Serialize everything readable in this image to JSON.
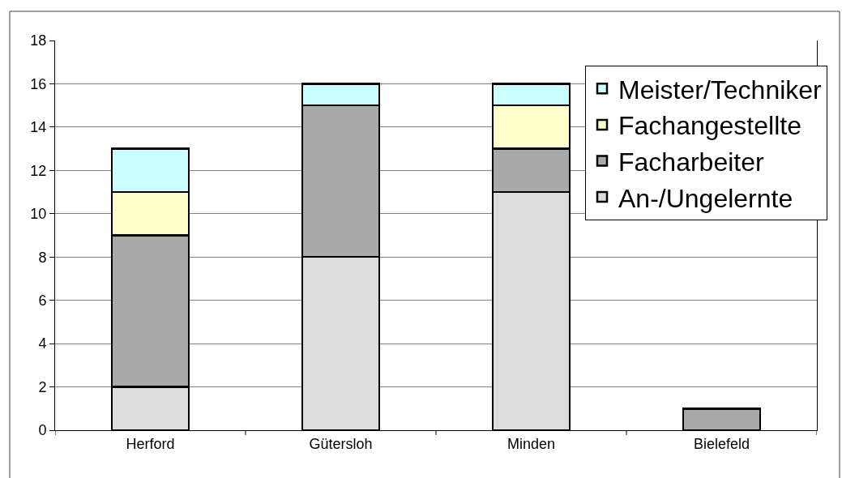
{
  "chart_data": {
    "type": "bar",
    "stacked": true,
    "categories": [
      "Herford",
      "Gütersloh",
      "Minden",
      "Bielefeld"
    ],
    "series": [
      {
        "name": "An-/Ungelernte",
        "color": "#dcdcdc",
        "values": [
          2,
          8,
          11,
          null
        ]
      },
      {
        "name": "Facharbeiter",
        "color": "#a9a9a9",
        "values": [
          7,
          7,
          2,
          1
        ]
      },
      {
        "name": "Fachangestellte",
        "color": "#ffffcc",
        "values": [
          2,
          null,
          2,
          null
        ]
      },
      {
        "name": "Meister/Techniker",
        "color": "#ccffff",
        "values": [
          2,
          1,
          1,
          null
        ]
      }
    ],
    "ylim": [
      0,
      18
    ],
    "yticks": [
      0,
      2,
      4,
      6,
      8,
      10,
      12,
      14,
      16,
      18
    ],
    "grid": "y",
    "legend": "top right"
  }
}
